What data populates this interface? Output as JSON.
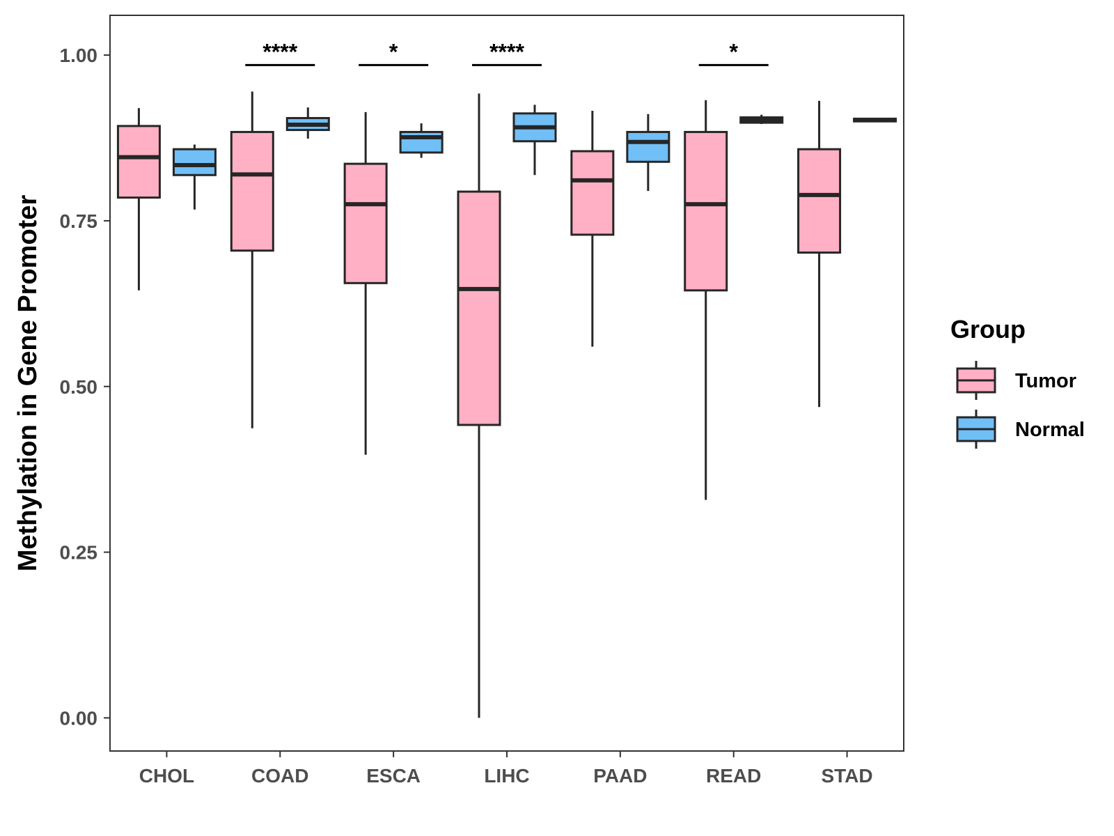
{
  "chart_data": {
    "type": "box",
    "title": "",
    "xlabel": "",
    "ylabel": "Methylation in Gene Promoter",
    "ylim": [
      -0.05,
      1.06
    ],
    "yticks": [
      0.0,
      0.25,
      0.5,
      0.75,
      1.0
    ],
    "ytick_labels": [
      "0.00",
      "0.25",
      "0.50",
      "0.75",
      "1.00"
    ],
    "categories": [
      "CHOL",
      "COAD",
      "ESCA",
      "LIHC",
      "PAAD",
      "READ",
      "STAD"
    ],
    "legend": {
      "title": "Group",
      "position": "right"
    },
    "series": [
      {
        "name": "Tumor",
        "color": "#FFB0C4",
        "boxes": [
          {
            "min": 0.645,
            "q1": 0.785,
            "median": 0.846,
            "q3": 0.893,
            "max": 0.92
          },
          {
            "min": 0.437,
            "q1": 0.705,
            "median": 0.82,
            "q3": 0.884,
            "max": 0.945
          },
          {
            "min": 0.397,
            "q1": 0.656,
            "median": 0.775,
            "q3": 0.836,
            "max": 0.914
          },
          {
            "min": 0.0,
            "q1": 0.442,
            "median": 0.647,
            "q3": 0.794,
            "max": 0.942
          },
          {
            "min": 0.56,
            "q1": 0.729,
            "median": 0.811,
            "q3": 0.855,
            "max": 0.916
          },
          {
            "min": 0.329,
            "q1": 0.645,
            "median": 0.775,
            "q3": 0.884,
            "max": 0.932
          },
          {
            "min": 0.469,
            "q1": 0.702,
            "median": 0.789,
            "q3": 0.858,
            "max": 0.931
          }
        ]
      },
      {
        "name": "Normal",
        "color": "#70BFF7",
        "boxes": [
          {
            "min": 0.767,
            "q1": 0.819,
            "median": 0.834,
            "q3": 0.858,
            "max": 0.865
          },
          {
            "min": 0.874,
            "q1": 0.887,
            "median": 0.895,
            "q3": 0.905,
            "max": 0.921
          },
          {
            "min": 0.845,
            "q1": 0.853,
            "median": 0.876,
            "q3": 0.884,
            "max": 0.897
          },
          {
            "min": 0.819,
            "q1": 0.87,
            "median": 0.891,
            "q3": 0.912,
            "max": 0.925
          },
          {
            "min": 0.795,
            "q1": 0.839,
            "median": 0.869,
            "q3": 0.884,
            "max": 0.911
          },
          {
            "min": 0.896,
            "q1": 0.898,
            "median": 0.902,
            "q3": 0.906,
            "max": 0.91
          },
          {
            "min": 0.9,
            "q1": 0.9,
            "median": 0.902,
            "q3": 0.904,
            "max": 0.904
          }
        ]
      }
    ],
    "significance": [
      {
        "category": "COAD",
        "label": "****",
        "y": 0.985
      },
      {
        "category": "ESCA",
        "label": "*",
        "y": 0.985
      },
      {
        "category": "LIHC",
        "label": "****",
        "y": 0.985
      },
      {
        "category": "READ",
        "label": "*",
        "y": 0.985
      }
    ]
  }
}
